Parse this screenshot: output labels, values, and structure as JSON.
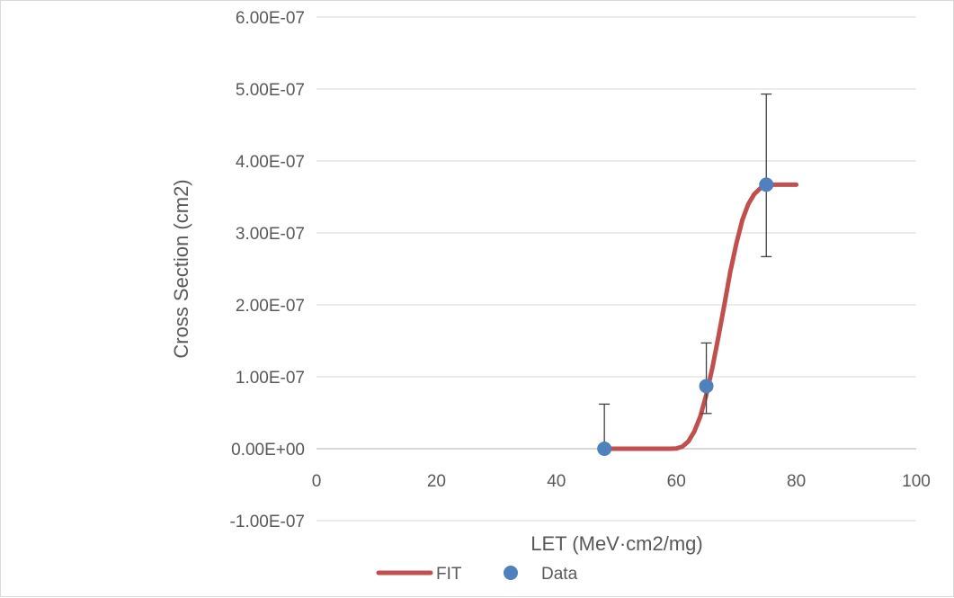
{
  "chart_data": {
    "type": "scatter",
    "title": "",
    "xlabel": "LET (MeV·cm2/mg)",
    "ylabel": "Cross Section (cm2)",
    "xlim": [
      0,
      100
    ],
    "ylim": [
      -1e-07,
      6e-07
    ],
    "x_ticks": [
      0,
      20,
      40,
      60,
      80,
      100
    ],
    "x_tick_labels": [
      "0",
      "20",
      "40",
      "60",
      "80",
      "100"
    ],
    "y_ticks": [
      -1e-07,
      0,
      1e-07,
      2e-07,
      3e-07,
      4e-07,
      5e-07,
      6e-07
    ],
    "y_tick_labels": [
      "-1.00E-07",
      "0.00E+00",
      "1.00E-07",
      "2.00E-07",
      "3.00E-07",
      "4.00E-07",
      "5.00E-07",
      "6.00E-07"
    ],
    "grid": "horizontal",
    "legend_position": "bottom",
    "series": [
      {
        "name": "FIT",
        "kind": "line",
        "color": "#c0504d",
        "x": [
          48,
          50,
          52,
          54,
          56,
          58,
          59,
          60,
          61,
          62,
          63,
          64,
          65,
          66,
          67,
          68,
          69,
          70,
          71,
          72,
          73,
          74,
          75,
          76,
          77,
          78,
          79,
          80
        ],
        "y": [
          0,
          0,
          0,
          0,
          0,
          0,
          0,
          3e-10,
          3e-09,
          1e-08,
          2.4e-08,
          4.5e-08,
          7.5e-08,
          1.12e-07,
          1.55e-07,
          2e-07,
          2.46e-07,
          2.85e-07,
          3.18e-07,
          3.4e-07,
          3.54e-07,
          3.62e-07,
          3.66e-07,
          3.67e-07,
          3.67e-07,
          3.67e-07,
          3.67e-07,
          3.67e-07
        ]
      },
      {
        "name": "Data",
        "kind": "points",
        "color": "#4f81bd",
        "x": [
          48,
          65,
          75
        ],
        "y": [
          0,
          8.7e-08,
          3.67e-07
        ],
        "err_plus": [
          6.2e-08,
          6e-08,
          1.26e-07
        ],
        "err_minus": [
          0,
          3.8e-08,
          1e-07
        ]
      }
    ]
  }
}
